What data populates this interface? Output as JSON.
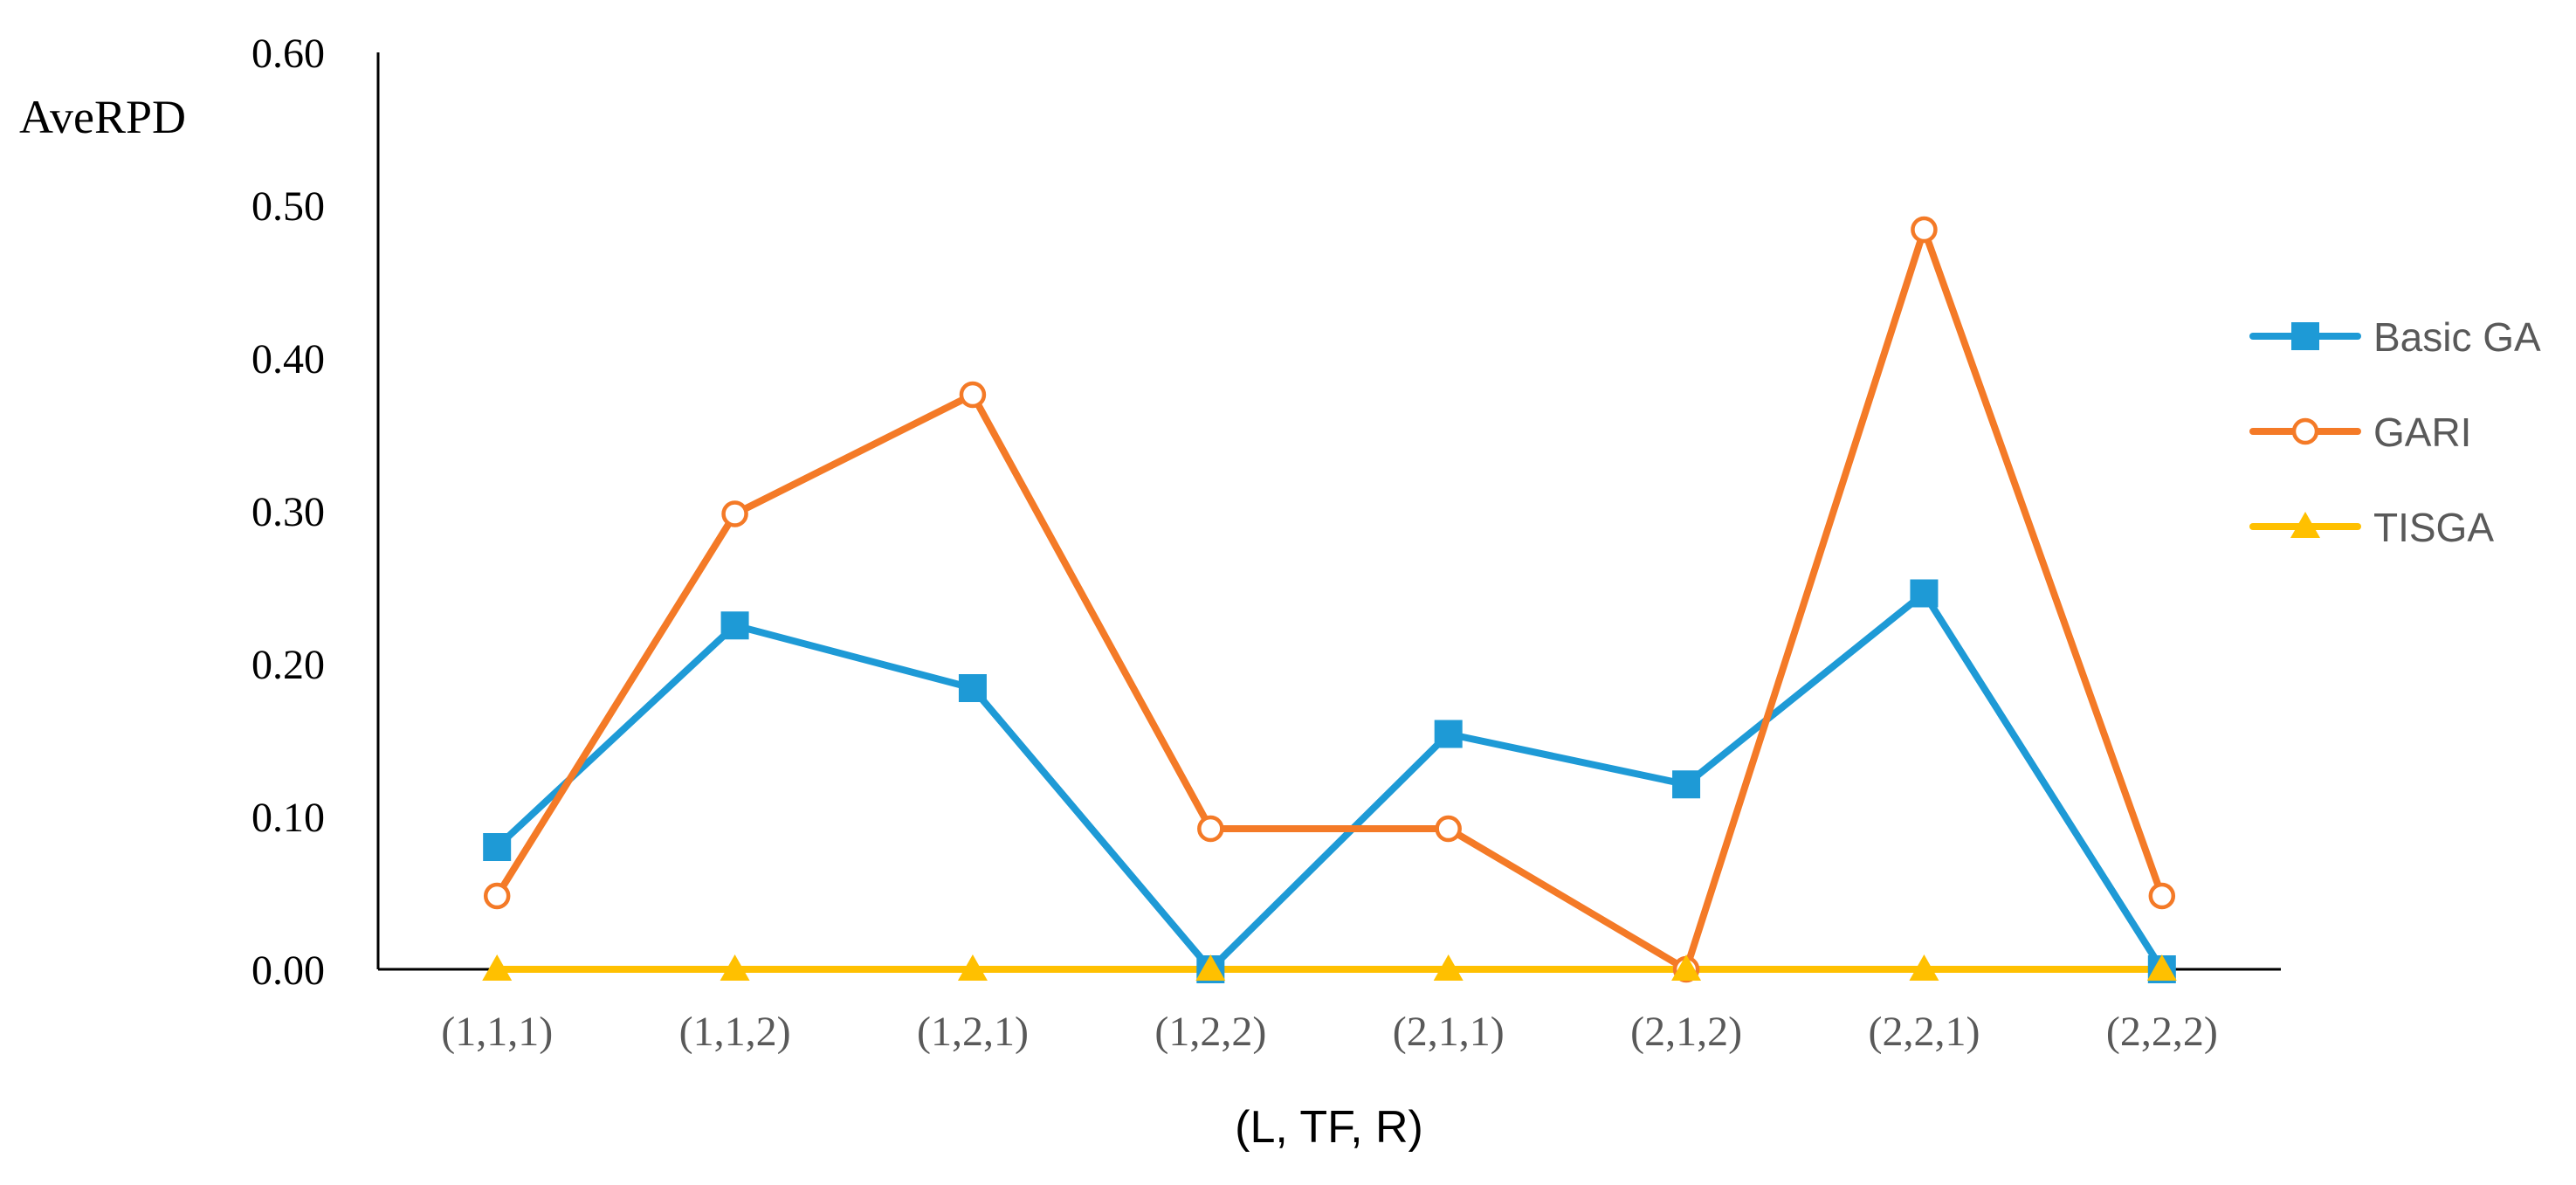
{
  "chart_data": {
    "type": "line",
    "title": "",
    "xlabel": "(L, TF, R)",
    "ylabel": "AveRPD",
    "categories": [
      "(1,1,1)",
      "(1,1,2)",
      "(1,2,1)",
      "(1,2,2)",
      "(2,1,1)",
      "(2,1,2)",
      "(2,2,1)",
      "(2,2,2)"
    ],
    "ylim": [
      0,
      0.6
    ],
    "yticks": [
      "0.00",
      "0.10",
      "0.20",
      "0.30",
      "0.40",
      "0.50",
      "0.60"
    ],
    "grid": false,
    "legend_position": "right",
    "series": [
      {
        "name": "Basic GA",
        "marker": "square",
        "color": "#1E9AD6",
        "values": [
          0.08,
          0.225,
          0.184,
          0.0,
          0.154,
          0.121,
          0.246,
          0.0
        ]
      },
      {
        "name": "GARI",
        "marker": "circle-open",
        "color": "#F47A27",
        "values": [
          0.048,
          0.298,
          0.376,
          0.092,
          0.092,
          0.0,
          0.484,
          0.048
        ]
      },
      {
        "name": "TISGA",
        "marker": "triangle",
        "color": "#FFC000",
        "values": [
          0.0,
          0.0,
          0.0,
          0.0,
          0.0,
          0.0,
          0.0,
          0.0
        ]
      }
    ]
  }
}
